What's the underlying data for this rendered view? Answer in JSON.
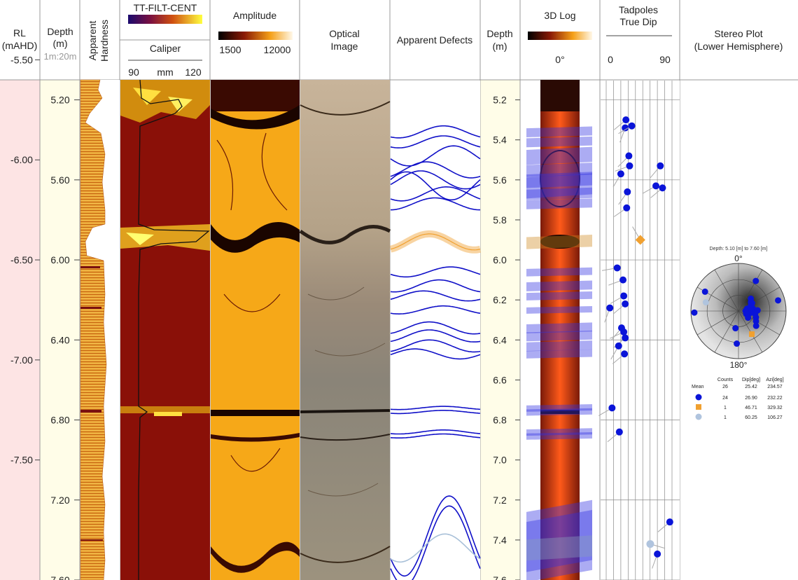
{
  "headers": {
    "rl": [
      "RL",
      "(mAHD)"
    ],
    "depth": [
      "Depth",
      "(m)"
    ],
    "scale": "1m:20m",
    "hardness": [
      "Apparent",
      "Hardness"
    ],
    "ttfilt": "TT-FILT-CENT",
    "caliper": "Caliper",
    "caliper_min": "90",
    "caliper_unit": "mm",
    "caliper_max": "120",
    "amplitude": "Amplitude",
    "amp_min": "1500",
    "amp_max": "12000",
    "optical": [
      "Optical",
      "Image"
    ],
    "defects": "Apparent Defects",
    "depth2": [
      "Depth",
      "(m)"
    ],
    "log3d": "3D Log",
    "log3d_angle": "0°",
    "tadpoles": [
      "Tadpoles",
      "True Dip"
    ],
    "tad_min": "0",
    "tad_max": "90",
    "stereo": [
      "Stereo Plot",
      "(Lower Hemisphere)"
    ]
  },
  "stereo": {
    "range": "Depth: 5.10 [m] to 7.60 [m]",
    "north": "0°",
    "south": "180°",
    "table_headers": [
      "Counts",
      "Dip[deg]",
      "Azi[deg]"
    ],
    "rows": [
      {
        "label": "Mean",
        "counts": "26",
        "dip": "25.42",
        "azi": "234.57",
        "color": "",
        "shape": ""
      },
      {
        "label": "",
        "counts": "24",
        "dip": "26.90",
        "azi": "232.22",
        "color": "#0a14d8",
        "shape": "circle"
      },
      {
        "label": "",
        "counts": "1",
        "dip": "46.71",
        "azi": "329.32",
        "color": "#f0a030",
        "shape": "square"
      },
      {
        "label": "",
        "counts": "1",
        "dip": "60.25",
        "azi": "106.27",
        "color": "#b0c4de",
        "shape": "circle"
      }
    ],
    "poles": [
      {
        "dip": 27,
        "azi": 60
      },
      {
        "dip": 30,
        "azi": 45
      },
      {
        "dip": 22,
        "azi": 70
      },
      {
        "dip": 25,
        "azi": 80
      },
      {
        "dip": 28,
        "azi": 95
      },
      {
        "dip": 20,
        "azi": 100
      },
      {
        "dip": 32,
        "azi": 110
      },
      {
        "dip": 18,
        "azi": 85
      },
      {
        "dip": 15,
        "azi": 75
      },
      {
        "dip": 12,
        "azi": 90
      },
      {
        "dip": 35,
        "azi": 120
      },
      {
        "dip": 40,
        "azi": 130
      },
      {
        "dip": 24,
        "azi": 65
      },
      {
        "dip": 26,
        "azi": 55
      },
      {
        "dip": 62,
        "azi": 30
      },
      {
        "dip": 75,
        "azi": 75
      },
      {
        "dip": 70,
        "azi": 300
      },
      {
        "dip": 82,
        "azi": 268
      },
      {
        "dip": 30,
        "azi": 190
      },
      {
        "dip": 58,
        "azi": 183
      },
      {
        "dip": 14,
        "azi": 110
      },
      {
        "dip": 20,
        "azi": 125
      },
      {
        "dip": 29,
        "azi": 100
      },
      {
        "dip": 33,
        "azi": 88
      }
    ],
    "pole_square": {
      "dip": 46.71,
      "azi": 150
    },
    "pole_light": {
      "dip": 60.25,
      "azi": 285
    }
  },
  "chart_data": {
    "type": "table",
    "depth_range_m": [
      5.1,
      7.6
    ],
    "depth_ticks": [
      "5.2",
      "5.4",
      "5.6",
      "5.8",
      "6.0",
      "6.2",
      "6.4",
      "6.6",
      "6.8",
      "7.0",
      "7.2",
      "7.4",
      "7.6"
    ],
    "depth_ticks_main": [
      "5.20",
      "5.60",
      "6.00",
      "6.40",
      "6.80",
      "7.20",
      "7.60"
    ],
    "rl_ticks": [
      "-5.50",
      "-6.00",
      "-6.50",
      "-7.00",
      "-7.50"
    ],
    "defects": [
      {
        "depth": 5.36,
        "amp": 0.03,
        "phase": 1.0,
        "color": "#1010c8"
      },
      {
        "depth": 5.41,
        "amp": 0.03,
        "phase": 1.0,
        "color": "#1010c8"
      },
      {
        "depth": 5.48,
        "amp": 0.05,
        "phase": 0.3,
        "color": "#1010c8"
      },
      {
        "depth": 5.55,
        "amp": 0.04,
        "phase": 2.2,
        "color": "#1010c8"
      },
      {
        "depth": 5.6,
        "amp": 0.045,
        "phase": 2.6,
        "color": "#1010c8"
      },
      {
        "depth": 5.63,
        "amp": 0.07,
        "phase": 3.6,
        "color": "#1010c8"
      },
      {
        "depth": 5.67,
        "amp": 0.035,
        "phase": 0.8,
        "color": "#1010c8"
      },
      {
        "depth": 5.72,
        "amp": 0.03,
        "phase": 1.6,
        "color": "#1010c8"
      },
      {
        "depth": 5.91,
        "amp": 0.04,
        "phase": 2.0,
        "color": "#f0a030"
      },
      {
        "depth": 6.06,
        "amp": 0.025,
        "phase": 0.5,
        "color": "#1010c8"
      },
      {
        "depth": 6.13,
        "amp": 0.03,
        "phase": 1.3,
        "color": "#1010c8"
      },
      {
        "depth": 6.18,
        "amp": 0.025,
        "phase": 2.4,
        "color": "#1010c8"
      },
      {
        "depth": 6.25,
        "amp": 0.02,
        "phase": 1.0,
        "color": "#1010c8"
      },
      {
        "depth": 6.34,
        "amp": 0.03,
        "phase": 2.0,
        "color": "#1010c8"
      },
      {
        "depth": 6.38,
        "amp": 0.03,
        "phase": 2.0,
        "color": "#1010c8"
      },
      {
        "depth": 6.43,
        "amp": 0.03,
        "phase": 2.0,
        "color": "#1010c8"
      },
      {
        "depth": 6.47,
        "amp": 0.025,
        "phase": 3.0,
        "color": "#1010c8"
      },
      {
        "depth": 6.74,
        "amp": 0.008,
        "phase": 1.0,
        "color": "#1010c8"
      },
      {
        "depth": 6.76,
        "amp": 0.008,
        "phase": 1.0,
        "color": "#1010c8"
      },
      {
        "depth": 6.86,
        "amp": 0.01,
        "phase": 1.0,
        "color": "#1010c8"
      },
      {
        "depth": 6.88,
        "amp": 0.01,
        "phase": 1.0,
        "color": "#1010c8"
      },
      {
        "depth": 7.38,
        "amp": 0.2,
        "phase": 0.6,
        "color": "#1010c8"
      },
      {
        "depth": 7.43,
        "amp": 0.2,
        "phase": 0.6,
        "color": "#1010c8"
      },
      {
        "depth": 7.44,
        "amp": 0.07,
        "phase": 0.9,
        "color": "#a8c0d8"
      }
    ],
    "tadpoles": [
      {
        "depth": 5.3,
        "dip": 27,
        "azi": 230
      },
      {
        "depth": 5.34,
        "dip": 26,
        "azi": 200
      },
      {
        "depth": 5.33,
        "dip": 35,
        "azi": 240
      },
      {
        "depth": 5.48,
        "dip": 31,
        "azi": 225
      },
      {
        "depth": 5.53,
        "dip": 32,
        "azi": 250
      },
      {
        "depth": 5.53,
        "dip": 74,
        "azi": 220
      },
      {
        "depth": 5.57,
        "dip": 20,
        "azi": 210
      },
      {
        "depth": 5.63,
        "dip": 68,
        "azi": 240
      },
      {
        "depth": 5.64,
        "dip": 77,
        "azi": 230
      },
      {
        "depth": 5.66,
        "dip": 29,
        "azi": 215
      },
      {
        "depth": 5.74,
        "dip": 28,
        "azi": 235
      },
      {
        "depth": 6.04,
        "dip": 15,
        "azi": 260
      },
      {
        "depth": 6.1,
        "dip": 23,
        "azi": 250
      },
      {
        "depth": 6.18,
        "dip": 24,
        "azi": 240
      },
      {
        "depth": 6.22,
        "dip": 26,
        "azi": 230
      },
      {
        "depth": 6.24,
        "dip": 5,
        "azi": 200
      },
      {
        "depth": 6.34,
        "dip": 21,
        "azi": 220
      },
      {
        "depth": 6.36,
        "dip": 24,
        "azi": 245
      },
      {
        "depth": 6.39,
        "dip": 26,
        "azi": 230
      },
      {
        "depth": 6.43,
        "dip": 17,
        "azi": 210
      },
      {
        "depth": 6.47,
        "dip": 25,
        "azi": 230
      },
      {
        "depth": 6.74,
        "dip": 8,
        "azi": 240
      },
      {
        "depth": 6.86,
        "dip": 18,
        "azi": 230
      },
      {
        "depth": 7.31,
        "dip": 87,
        "azi": 230
      },
      {
        "depth": 7.47,
        "dip": 70,
        "azi": 200
      }
    ],
    "tadpole_square": {
      "depth": 5.9,
      "dip": 46.71,
      "azi": 329.32
    },
    "tadpole_light": {
      "depth": 7.42,
      "dip": 60.25,
      "azi": 106.27
    }
  },
  "colors": {
    "rl_bg": "#fde4e4",
    "depth_bg": "#fffde8",
    "blue": "#0a14d8",
    "orange": "#f0a030",
    "light": "#b0c4de",
    "dark_red": "#7a1010",
    "amp_fill": "#f6a818"
  }
}
